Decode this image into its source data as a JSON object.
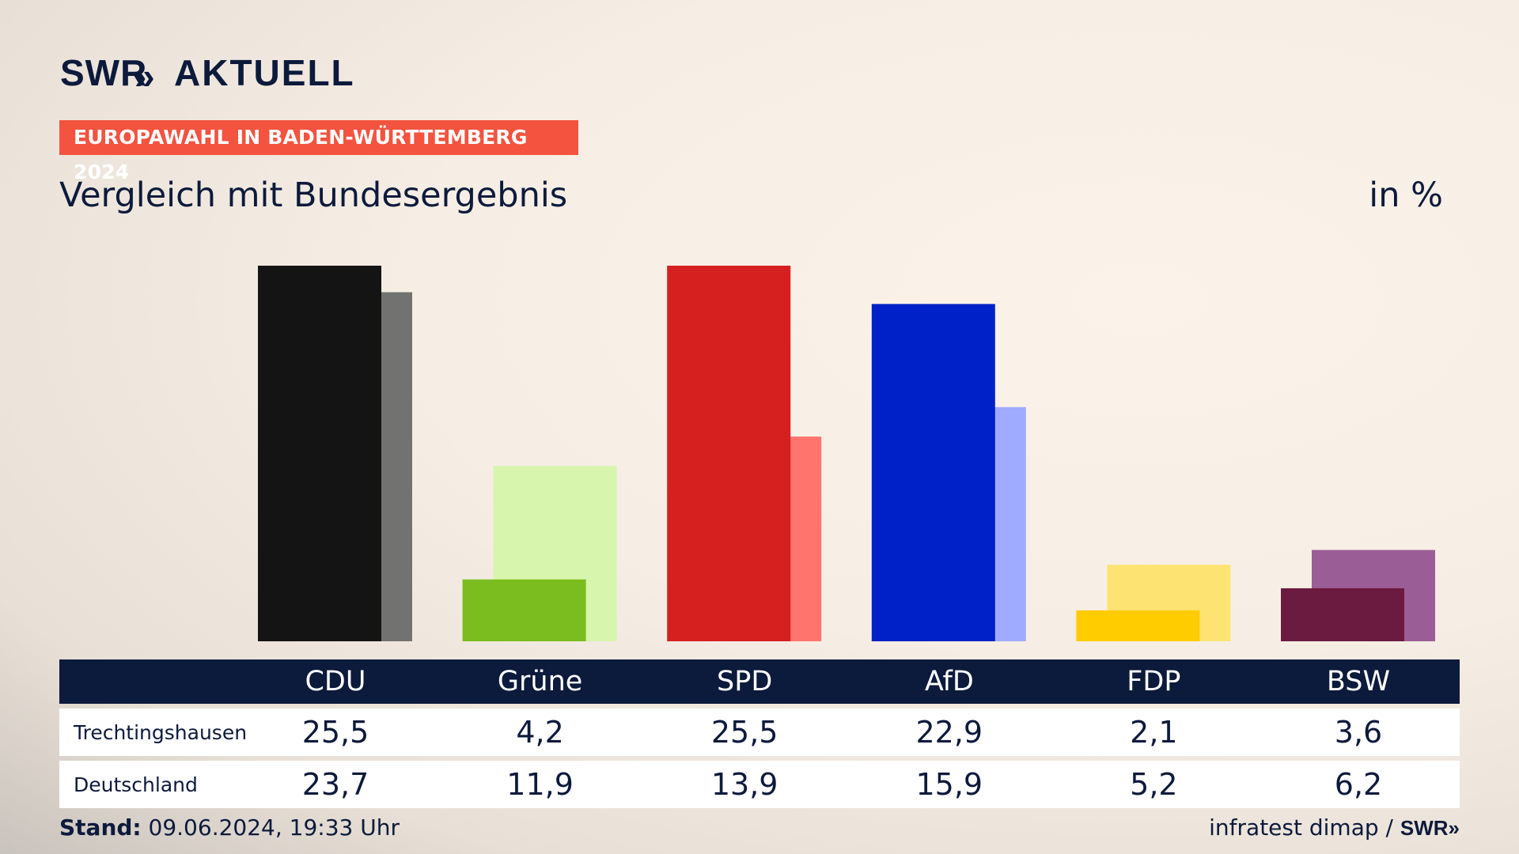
{
  "brand": {
    "logo_swr": "SWR",
    "logo_aktuell": "AKTUELL",
    "logo_arrows": "»"
  },
  "badge": "EUROPAWAHL IN BADEN-WÜRTTEMBERG 2024",
  "subtitle": "Vergleich mit Bundesergebnis",
  "unit": "in %",
  "chart_data": {
    "type": "bar",
    "categories": [
      "CDU",
      "Grüne",
      "SPD",
      "AfD",
      "FDP",
      "BSW"
    ],
    "series": [
      {
        "name": "Trechtingshausen",
        "values": [
          25.5,
          4.2,
          25.5,
          22.9,
          2.1,
          3.6
        ]
      },
      {
        "name": "Deutschland",
        "values": [
          23.7,
          11.9,
          13.9,
          15.9,
          5.2,
          6.2
        ]
      }
    ],
    "colors": {
      "primary": [
        "#141414",
        "#7bbd1f",
        "#d61f1f",
        "#0021c8",
        "#ffcc00",
        "#6b1b40"
      ],
      "secondary": [
        "#727270",
        "#d8f5ad",
        "#ff756e",
        "#9fabff",
        "#fde372",
        "#9b5d96"
      ]
    },
    "ylim": [
      0,
      25.5
    ]
  },
  "table": {
    "rows": [
      {
        "label": "Trechtingshausen",
        "values": [
          "25,5",
          "4,2",
          "25,5",
          "22,9",
          "2,1",
          "3,6"
        ]
      },
      {
        "label": "Deutschland",
        "values": [
          "23,7",
          "11,9",
          "13,9",
          "15,9",
          "5,2",
          "6,2"
        ]
      }
    ]
  },
  "footer": {
    "stand_label": "Stand:",
    "stand_value": "09.06.2024, 19:33 Uhr",
    "source": "infratest dimap /",
    "source_brand": "SWR»"
  }
}
